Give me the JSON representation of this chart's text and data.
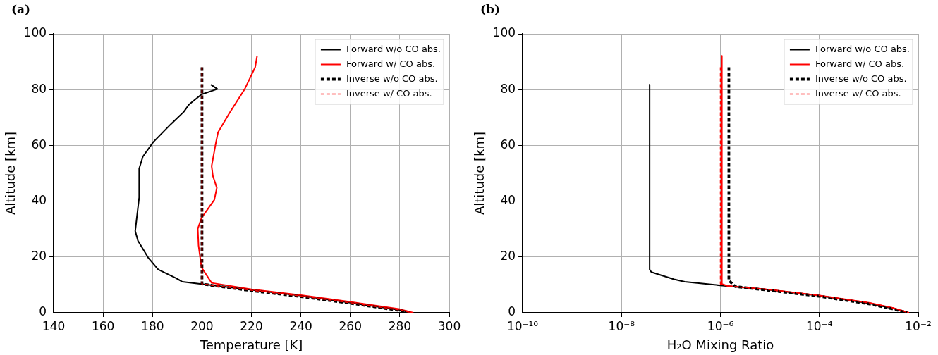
{
  "chart_data": [
    {
      "type": "line",
      "title": "(a)",
      "xlabel": "Temperature [K]",
      "ylabel": "Altitude [km]",
      "xlim": [
        140,
        300
      ],
      "xticks": [
        140,
        160,
        180,
        200,
        220,
        240,
        260,
        280,
        300
      ],
      "ylim": [
        0,
        100
      ],
      "yticks": [
        0,
        20,
        40,
        60,
        80,
        100
      ],
      "grid": true,
      "legend": "top right",
      "marker": "none",
      "series": [
        {
          "name": "Forward w/o CO abs.",
          "color": "#000000",
          "line_style": "solid",
          "x": [
            203.6,
            206.2,
            199.8,
            194.7,
            192.6,
            187.5,
            180.3,
            176.1,
            174.6,
            174.6,
            173.0,
            174.1,
            178.2,
            182.3,
            189.5,
            192.1,
            199.8,
            220,
            240,
            260,
            280,
            284.5
          ],
          "values": [
            81.8,
            80.2,
            78.3,
            74.6,
            72.0,
            67.7,
            61.2,
            56.0,
            51.7,
            41.4,
            29.3,
            25.8,
            19.8,
            15.5,
            12.4,
            11.1,
            10.3,
            8.2,
            6.1,
            3.6,
            1.0,
            0
          ]
        },
        {
          "name": "Forward w/ CO abs.",
          "color": "#ff0000",
          "line_style": "solid",
          "x": [
            222.3,
            221.5,
            217.3,
            211.1,
            206.5,
            205.5,
            203.9,
            204.4,
            206.0,
            205.0,
            199.8,
            198.3,
            198.6,
            199.8,
            203.9,
            220,
            240,
            260,
            280,
            285.5
          ],
          "values": [
            92.1,
            88.0,
            80.2,
            71.6,
            64.7,
            60.4,
            52.6,
            49.1,
            44.8,
            40.5,
            34.0,
            30.1,
            24.1,
            16.3,
            10.7,
            8.4,
            6.3,
            3.9,
            1.3,
            0
          ]
        },
        {
          "name": "Inverse w/o CO abs.",
          "color": "#000000",
          "line_style": "dashed",
          "x": [
            200,
            200,
            220,
            240,
            260,
            280,
            284.7
          ],
          "values": [
            88.0,
            10.3,
            7.9,
            5.8,
            3.4,
            0.8,
            0
          ]
        },
        {
          "name": "Inverse w/ CO abs.",
          "color": "#ff0000",
          "line_style": "dashed",
          "x": [
            200,
            200,
            220,
            240,
            260,
            280,
            285
          ],
          "values": [
            88.0,
            10.3,
            8.1,
            6.0,
            3.6,
            1.0,
            0
          ]
        }
      ]
    },
    {
      "type": "line",
      "title": "(b)",
      "xlabel": "H₂O Mixing Ratio",
      "ylabel": "Altitude [km]",
      "log": "x",
      "xlim": [
        1e-10,
        0.01
      ],
      "xticks": [
        {
          "value": 1e-10,
          "label": "10⁻¹⁰"
        },
        {
          "value": 1e-08,
          "label": "10⁻⁸"
        },
        {
          "value": 1e-06,
          "label": "10⁻⁶"
        },
        {
          "value": 0.0001,
          "label": "10⁻⁴"
        },
        {
          "value": 0.01,
          "label": "10⁻²"
        }
      ],
      "ylim": [
        0,
        100
      ],
      "yticks": [
        0,
        20,
        40,
        60,
        80,
        100
      ],
      "grid": true,
      "legend": "top right",
      "marker": "none",
      "series": [
        {
          "name": "Forward w/o CO abs.",
          "color": "#000000",
          "line_style": "solid",
          "x": [
            3.7e-08,
            3.7e-08,
            4e-08,
            1.15e-07,
            1.9e-07,
            1e-06,
            1e-05,
            0.0001,
            0.001,
            0.003,
            0.006
          ],
          "values": [
            81.8,
            15.5,
            14.6,
            12.0,
            11.1,
            9.8,
            8.2,
            6.1,
            3.4,
            1.6,
            0
          ]
        },
        {
          "name": "Forward w/ CO abs.",
          "color": "#ff0000",
          "line_style": "solid",
          "x": [
            1.07e-06,
            1.07e-06,
            1.4e-06,
            1e-05,
            0.0001,
            0.001,
            0.003,
            0.0065
          ],
          "values": [
            92.1,
            10.3,
            9.6,
            8.3,
            6.2,
            3.6,
            1.8,
            0
          ]
        },
        {
          "name": "Inverse w/o CO abs.",
          "color": "#000000",
          "line_style": "dashed",
          "x": [
            1.48e-06,
            1.48e-06,
            2e-06,
            1e-05,
            0.0001,
            0.001,
            0.003,
            0.006
          ],
          "values": [
            88.0,
            11.6,
            9.4,
            8.0,
            5.9,
            3.2,
            1.4,
            0
          ]
        },
        {
          "name": "Inverse w/ CO abs.",
          "color": "#ff0000",
          "line_style": "dashed",
          "x": [
            1e-06,
            1e-06,
            1.4e-06,
            1e-05,
            0.0001,
            0.001,
            0.003,
            0.0065
          ],
          "values": [
            88.0,
            10.3,
            9.6,
            8.3,
            6.2,
            3.6,
            1.8,
            0
          ]
        }
      ]
    }
  ]
}
